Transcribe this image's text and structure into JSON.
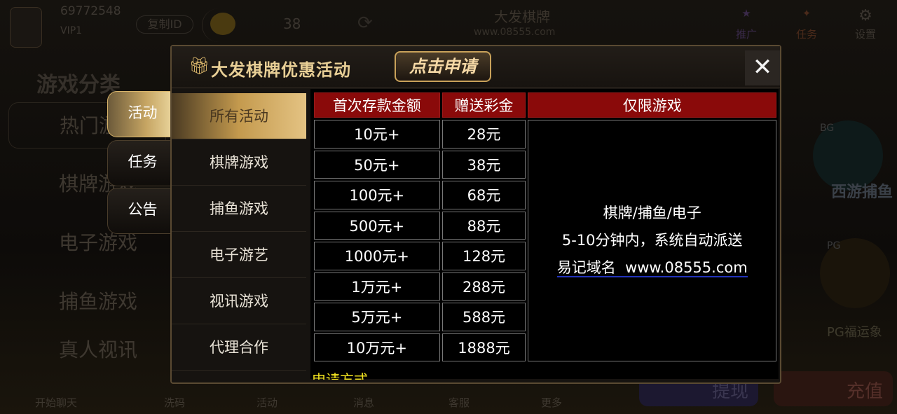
{
  "top": {
    "user_id": "69772548",
    "vip": "VIP1",
    "copy_id": "复制ID",
    "balance": "38",
    "brand": "大发棋牌",
    "url": "www.08555.com",
    "icons": [
      {
        "label": "推广",
        "icon": "promo-icon"
      },
      {
        "label": "任务",
        "icon": "task-icon"
      },
      {
        "label": "设置",
        "icon": "gear-icon"
      }
    ]
  },
  "left": {
    "title": "游戏分类",
    "categories": [
      "热门游戏",
      "棋牌游戏",
      "电子游戏",
      "捕鱼游戏",
      "真人视讯"
    ]
  },
  "bottom_nav": [
    "开始聊天",
    "洗码",
    "活动",
    "消息",
    "客服",
    "更多"
  ],
  "bottom_buttons": {
    "withdraw": "提现",
    "deposit": "充值"
  },
  "right_games": [
    "BG",
    "西游捕鱼",
    "PG",
    "PG福运象"
  ],
  "modal": {
    "title": "大发棋牌优惠活动",
    "apply_button": "点击申请",
    "side_tabs": [
      "活动",
      "任务",
      "公告"
    ],
    "active_side_tab": "活动",
    "submenu": [
      "所有活动",
      "棋牌游戏",
      "捕鱼游戏",
      "电子游艺",
      "视讯游戏",
      "代理合作"
    ],
    "active_submenu": "所有活动",
    "table": {
      "headers": [
        "首次存款金额",
        "赠送彩金",
        "仅限游戏"
      ],
      "rows": [
        [
          "10元+",
          "28元"
        ],
        [
          "50元+",
          "38元"
        ],
        [
          "100元+",
          "68元"
        ],
        [
          "500元+",
          "88元"
        ],
        [
          "1000元+",
          "128元"
        ],
        [
          "1万元+",
          "288元"
        ],
        [
          "5万元+",
          "588元"
        ],
        [
          "10万元+",
          "1888元"
        ]
      ],
      "note_lines": [
        "棋牌/捕鱼/电子",
        "5-10分钟内，系统自动派送"
      ],
      "domain_label": "易记域名",
      "domain": "www.08555.com"
    },
    "apply_method": "申请方式"
  },
  "colors": {
    "header_red": "#8a0a0a",
    "gold": "#d9b56a",
    "yellow_text": "#f2e320"
  }
}
